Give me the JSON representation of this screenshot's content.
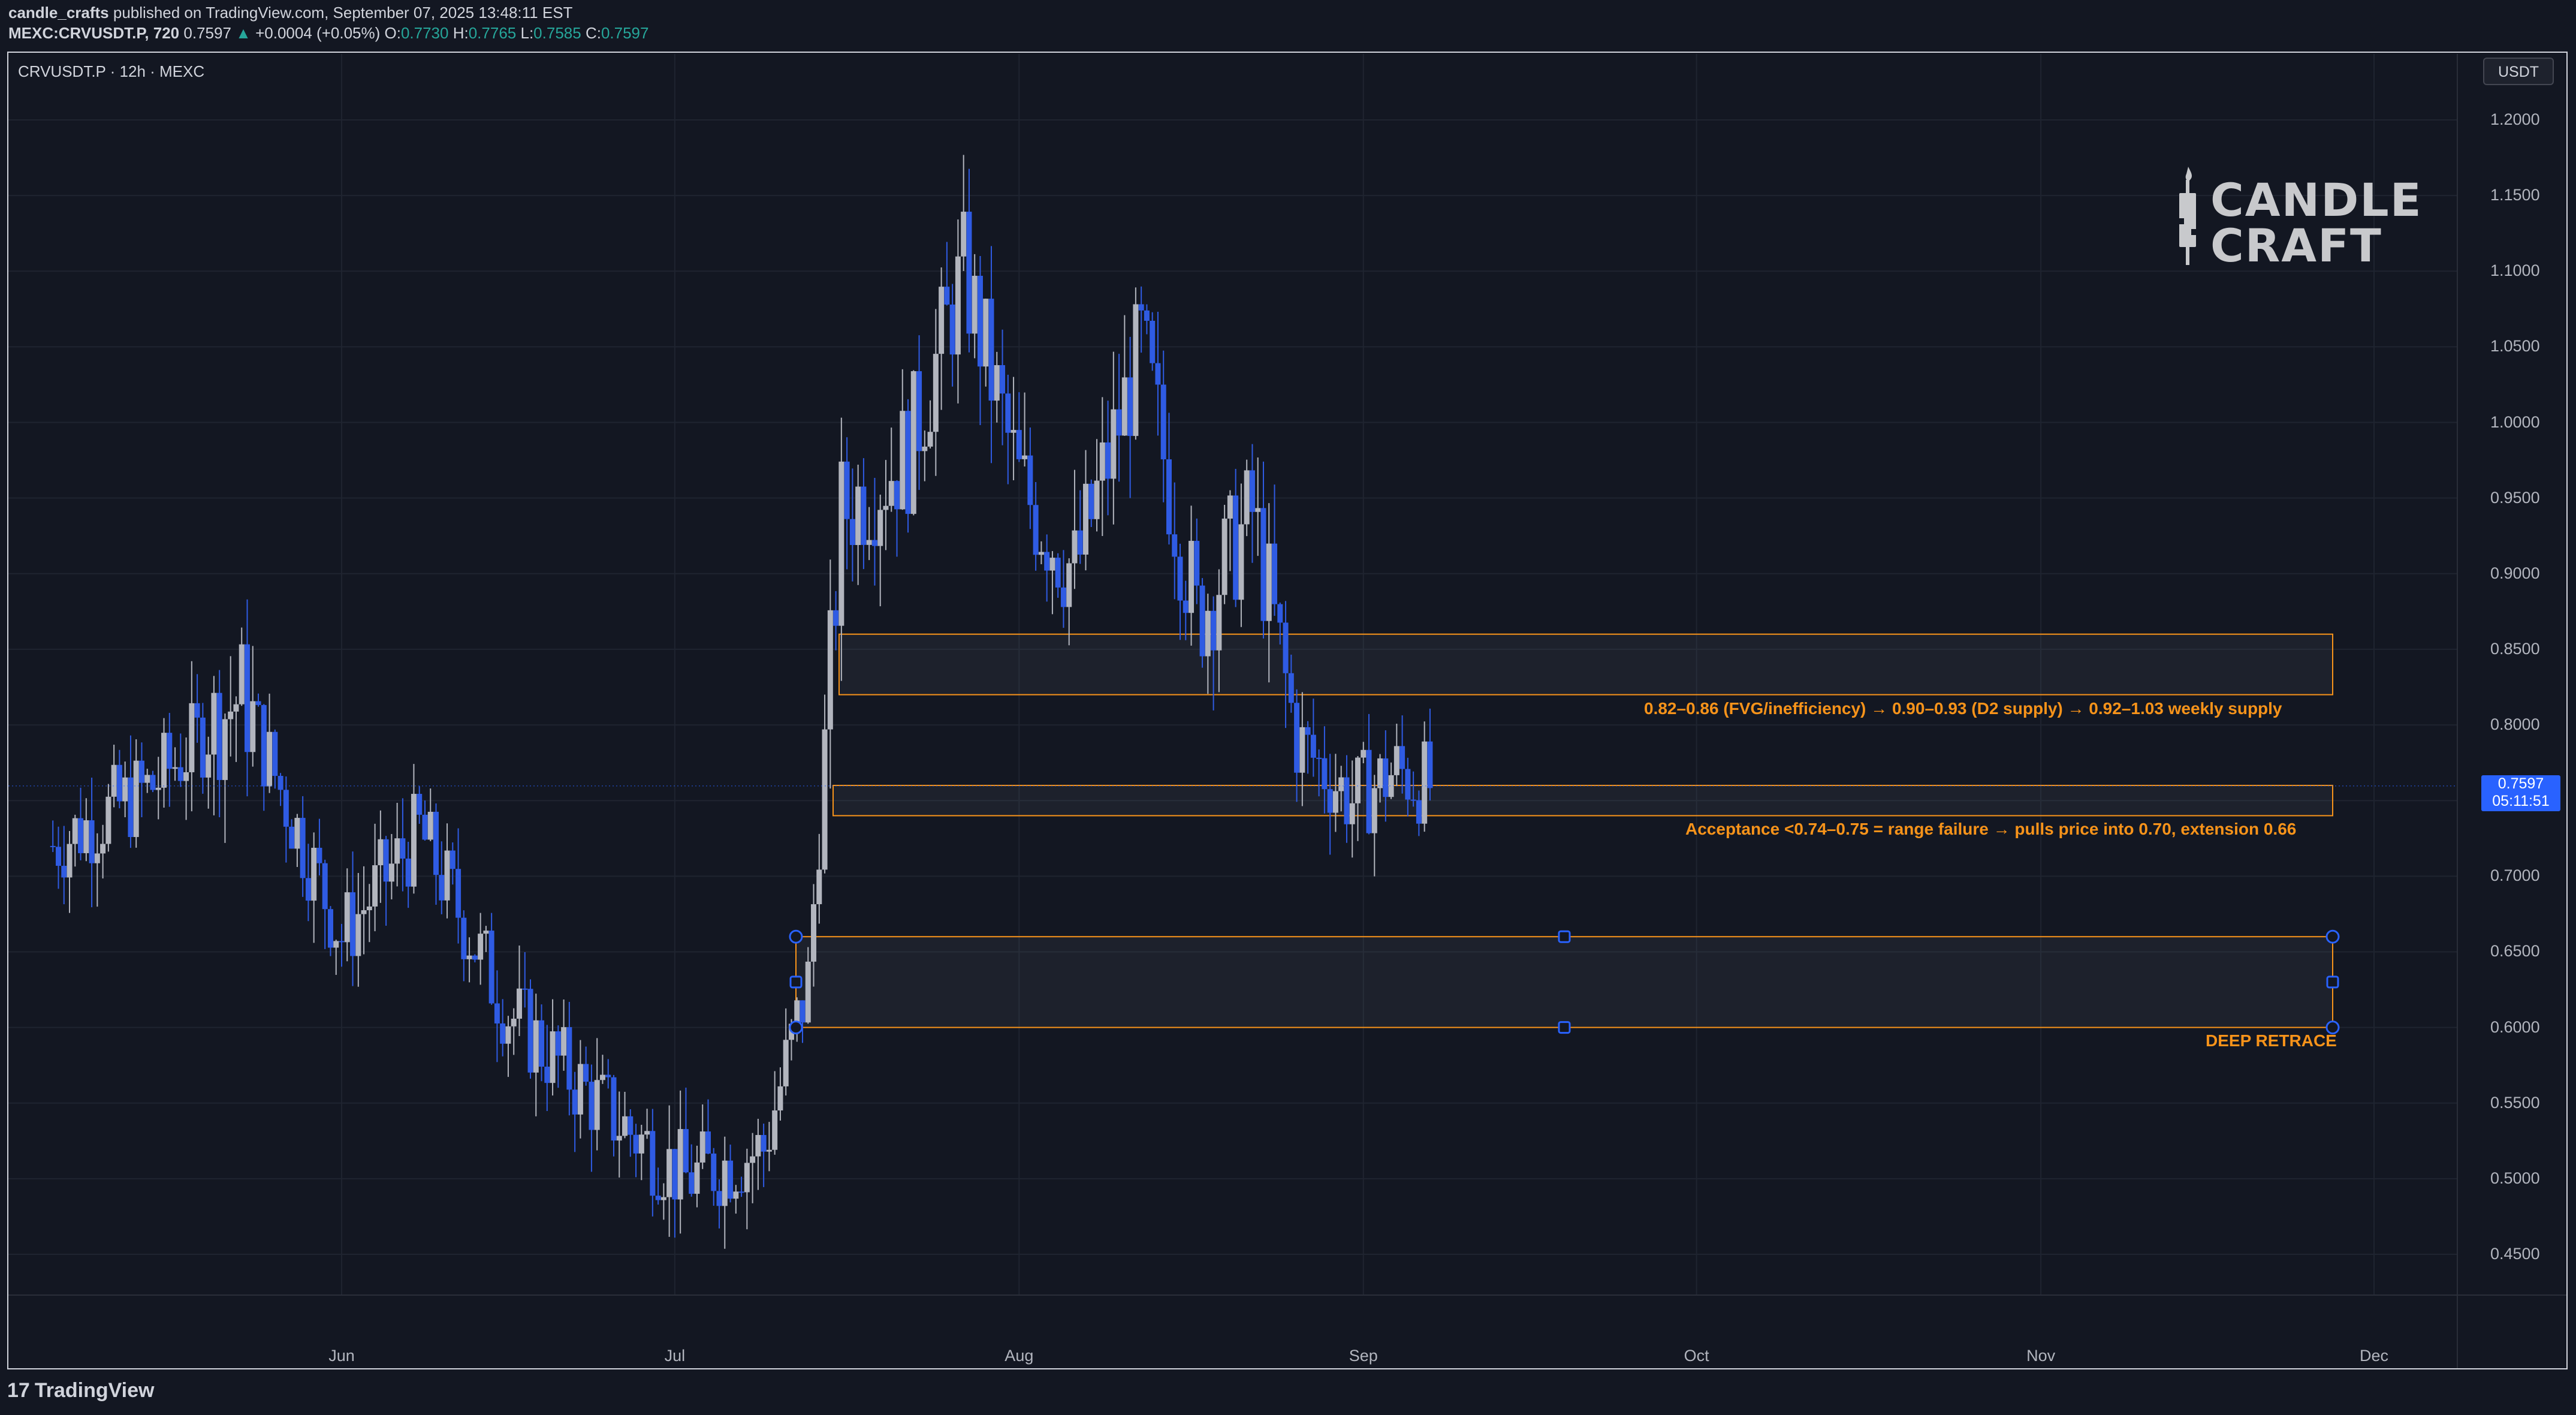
{
  "header": {
    "publisher": "candle_crafts",
    "published_text": "published on TradingView.com, September 07, 2025 13:48:11 EST",
    "ticker": "MEXC:CRVUSDT.P, 720",
    "last": "0.7597",
    "change": "+0.0004 (+0.05%)",
    "open_label": "O:",
    "open": "0.7730",
    "high_label": "H:",
    "high": "0.7765",
    "low_label": "L:",
    "low": "0.7585",
    "close_label": "C:",
    "close": "0.7597"
  },
  "symbol_label": "CRVUSDT.P · 12h · MEXC",
  "currency_button": "USDT",
  "price_label": {
    "price": "0.7597",
    "countdown": "05:11:51"
  },
  "brand": {
    "line1": "CANDLE",
    "line2": "CRAFT"
  },
  "footer_logo": "TradingView",
  "annotations": {
    "zone1": "0.82–0.86 (FVG/inefficiency) → 0.90–0.93 (D2 supply) → 0.92–1.03 weekly supply",
    "zone2": "Acceptance <0.74–0.75 = range failure → pulls price into 0.70, extension 0.66",
    "zone3": "DEEP RETRACE"
  },
  "colors": {
    "background": "#131722",
    "up": "#b2b5be",
    "down": "#2f5be3",
    "zone": "#f7931a",
    "accent": "#2962ff"
  },
  "chart_data": {
    "type": "candlestick",
    "ylim": [
      0.42,
      1.22
    ],
    "y_ticks": [
      "1.2000",
      "1.1500",
      "1.1000",
      "1.0500",
      "1.0000",
      "0.9500",
      "0.9000",
      "0.8500",
      "0.8000",
      "0.7500",
      "0.7000",
      "0.6500",
      "0.6000",
      "0.5500",
      "0.5000",
      "0.4500"
    ],
    "x_ticks": [
      "Jun",
      "Jul",
      "Aug",
      "Sep",
      "Oct",
      "Nov",
      "Dec"
    ],
    "grid": true,
    "last_price": 0.7597,
    "zones": [
      {
        "low": 0.82,
        "high": 0.86
      },
      {
        "low": 0.74,
        "high": 0.76
      },
      {
        "low": 0.6,
        "high": 0.66
      }
    ],
    "key_points": [
      {
        "date": "2025-05-06",
        "close": 0.72
      },
      {
        "date": "2025-05-15",
        "close": 0.76
      },
      {
        "date": "2025-05-23",
        "close": 0.82
      },
      {
        "date": "2025-06-01",
        "close": 0.66
      },
      {
        "date": "2025-06-08",
        "close": 0.73
      },
      {
        "date": "2025-06-16",
        "close": 0.61
      },
      {
        "date": "2025-06-24",
        "close": 0.55
      },
      {
        "date": "2025-07-02",
        "close": 0.5
      },
      {
        "date": "2025-07-09",
        "close": 0.52
      },
      {
        "date": "2025-07-13",
        "close": 0.63
      },
      {
        "date": "2025-07-16",
        "close": 0.94
      },
      {
        "date": "2025-07-22",
        "close": 0.98
      },
      {
        "date": "2025-07-27",
        "close": 1.1
      },
      {
        "date": "2025-08-01",
        "close": 0.96
      },
      {
        "date": "2025-08-06",
        "close": 0.9
      },
      {
        "date": "2025-08-12",
        "close": 1.05
      },
      {
        "date": "2025-08-17",
        "close": 0.87
      },
      {
        "date": "2025-08-22",
        "close": 0.94
      },
      {
        "date": "2025-08-26",
        "close": 0.79
      },
      {
        "date": "2025-08-31",
        "close": 0.75
      },
      {
        "date": "2025-09-04",
        "close": 0.77
      },
      {
        "date": "2025-09-07",
        "close": 0.7597
      }
    ]
  }
}
